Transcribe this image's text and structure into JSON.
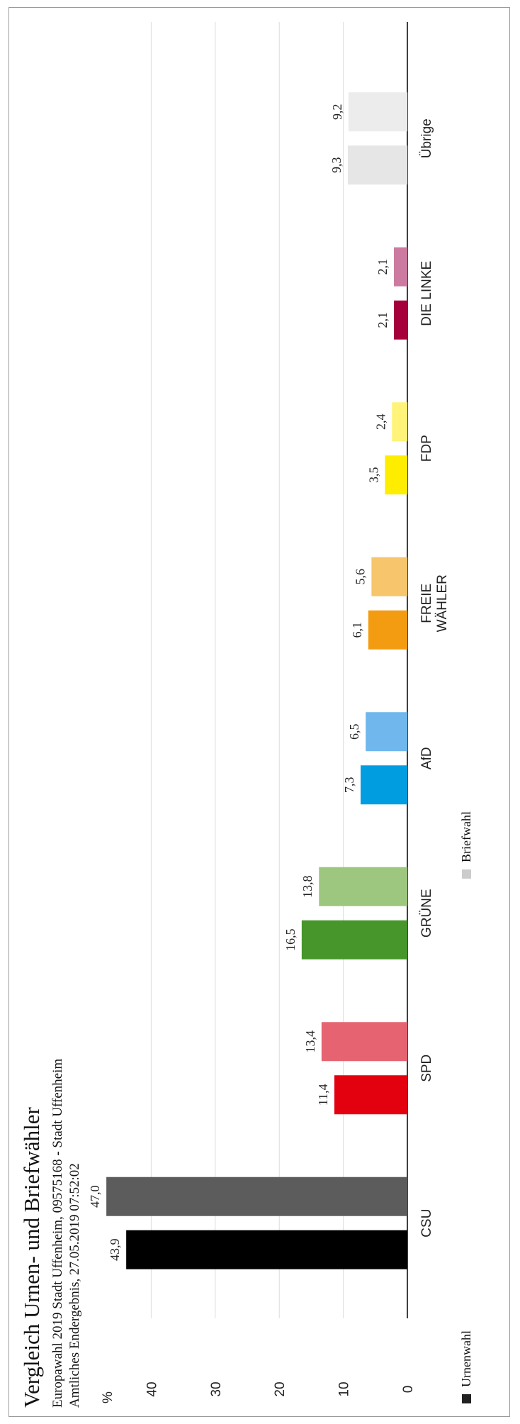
{
  "chart_data": {
    "type": "bar",
    "title": "Vergleich Urnen- und Briefwähler",
    "subtitle_lines": [
      "Europawahl 2019 Stadt Uffenheim, 09575168 - Stadt Uffenheim",
      "Amtliches Endergebnis, 27.05.2019 07:52:02"
    ],
    "ylabel": "%",
    "ylim": [
      0,
      50
    ],
    "yticks": [
      0,
      10,
      20,
      30,
      40
    ],
    "grid": true,
    "legend_position": "bottom-left",
    "categories": [
      [
        "CSU"
      ],
      [
        "SPD"
      ],
      [
        "GRÜNE"
      ],
      [
        "AfD"
      ],
      [
        "FREIE",
        "WÄHLER"
      ],
      [
        "FDP"
      ],
      [
        "DIE LINKE"
      ],
      [
        "Übrige"
      ]
    ],
    "series": [
      {
        "name": "Urnenwahl",
        "legend_color": "#222222",
        "values": [
          43.9,
          11.4,
          16.5,
          7.3,
          6.1,
          3.5,
          2.1,
          9.3
        ],
        "labels": [
          "43,9",
          "11,4",
          "16,5",
          "7,3",
          "6,1",
          "3,5",
          "2,1",
          "9,3"
        ],
        "colors": [
          "#000000",
          "#e3000f",
          "#46962b",
          "#009ee0",
          "#f39c12",
          "#ffed00",
          "#a6003c",
          "#e6e6e6"
        ]
      },
      {
        "name": "Briefwahl",
        "legend_color": "#cccccc",
        "values": [
          47.0,
          13.4,
          13.8,
          6.5,
          5.6,
          2.4,
          2.1,
          9.2
        ],
        "labels": [
          "47,0",
          "13,4",
          "13,8",
          "6,5",
          "5,6",
          "2,4",
          "2,1",
          "9,2"
        ],
        "colors": [
          "#5c5c5c",
          "#e66472",
          "#9dc77e",
          "#6fb7ec",
          "#f7c56b",
          "#fff37a",
          "#cc7aa0",
          "#ececec"
        ]
      }
    ]
  }
}
